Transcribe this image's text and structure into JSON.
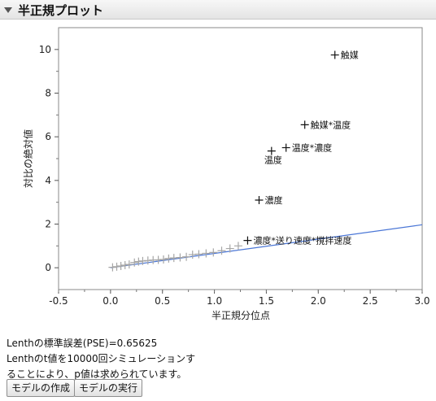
{
  "panel": {
    "title": "半正規プロット"
  },
  "chart_data": {
    "type": "scatter",
    "xlabel": "半正規分位点",
    "ylabel": "対比の絶対値",
    "xlim": [
      -0.5,
      3.0
    ],
    "ylim": [
      -1.0,
      11.0
    ],
    "xticks": [
      -0.5,
      0.0,
      0.5,
      1.0,
      1.5,
      2.0,
      2.5,
      3.0
    ],
    "xtick_labels": [
      "-0.5",
      "0.0",
      "0.5",
      "1.0",
      "1.5",
      "2.0",
      "2.5",
      "3.0"
    ],
    "yticks": [
      0,
      2,
      4,
      6,
      8,
      10
    ],
    "ytick_labels": [
      "0",
      "2",
      "4",
      "6",
      "8",
      "10"
    ],
    "grid": false,
    "reference_line": {
      "slope": 0.65625,
      "intercept": 0,
      "x_range": [
        0.0,
        3.0
      ],
      "color": "#4a76d6"
    },
    "labeled_points": [
      {
        "label": "触媒",
        "x": 2.16,
        "y": 9.75
      },
      {
        "label": "触媒*温度",
        "x": 1.87,
        "y": 6.55
      },
      {
        "label": "温度*濃度",
        "x": 1.69,
        "y": 5.5
      },
      {
        "label": "温度",
        "x": 1.55,
        "y": 5.35
      },
      {
        "label": "濃度",
        "x": 1.43,
        "y": 3.1
      },
      {
        "label": "濃度*送り速度*撹拌速度",
        "x": 1.32,
        "y": 1.25
      }
    ],
    "unlabeled_points": [
      {
        "x": 0.02,
        "y": 0.02
      },
      {
        "x": 0.06,
        "y": 0.05
      },
      {
        "x": 0.1,
        "y": 0.08
      },
      {
        "x": 0.14,
        "y": 0.12
      },
      {
        "x": 0.18,
        "y": 0.15
      },
      {
        "x": 0.23,
        "y": 0.24
      },
      {
        "x": 0.27,
        "y": 0.28
      },
      {
        "x": 0.31,
        "y": 0.31
      },
      {
        "x": 0.36,
        "y": 0.33
      },
      {
        "x": 0.41,
        "y": 0.35
      },
      {
        "x": 0.46,
        "y": 0.36
      },
      {
        "x": 0.51,
        "y": 0.38
      },
      {
        "x": 0.56,
        "y": 0.42
      },
      {
        "x": 0.61,
        "y": 0.45
      },
      {
        "x": 0.67,
        "y": 0.47
      },
      {
        "x": 0.73,
        "y": 0.5
      },
      {
        "x": 0.79,
        "y": 0.6
      },
      {
        "x": 0.85,
        "y": 0.62
      },
      {
        "x": 0.92,
        "y": 0.66
      },
      {
        "x": 0.99,
        "y": 0.7
      },
      {
        "x": 1.07,
        "y": 0.78
      },
      {
        "x": 1.15,
        "y": 0.88
      },
      {
        "x": 1.23,
        "y": 1.0
      }
    ],
    "colors": {
      "labeled_marker": "#111111",
      "unlabeled_marker": "#a6a6a6"
    }
  },
  "info": {
    "line1": "Lenthの標準誤差(PSE)=0.65625",
    "line2": "Lenthのt値を10000回シミュレーションす",
    "line3": "ることにより、p値は求められています。"
  },
  "buttons": {
    "make_model": "モデルの作成",
    "run_model": "モデルの実行"
  }
}
